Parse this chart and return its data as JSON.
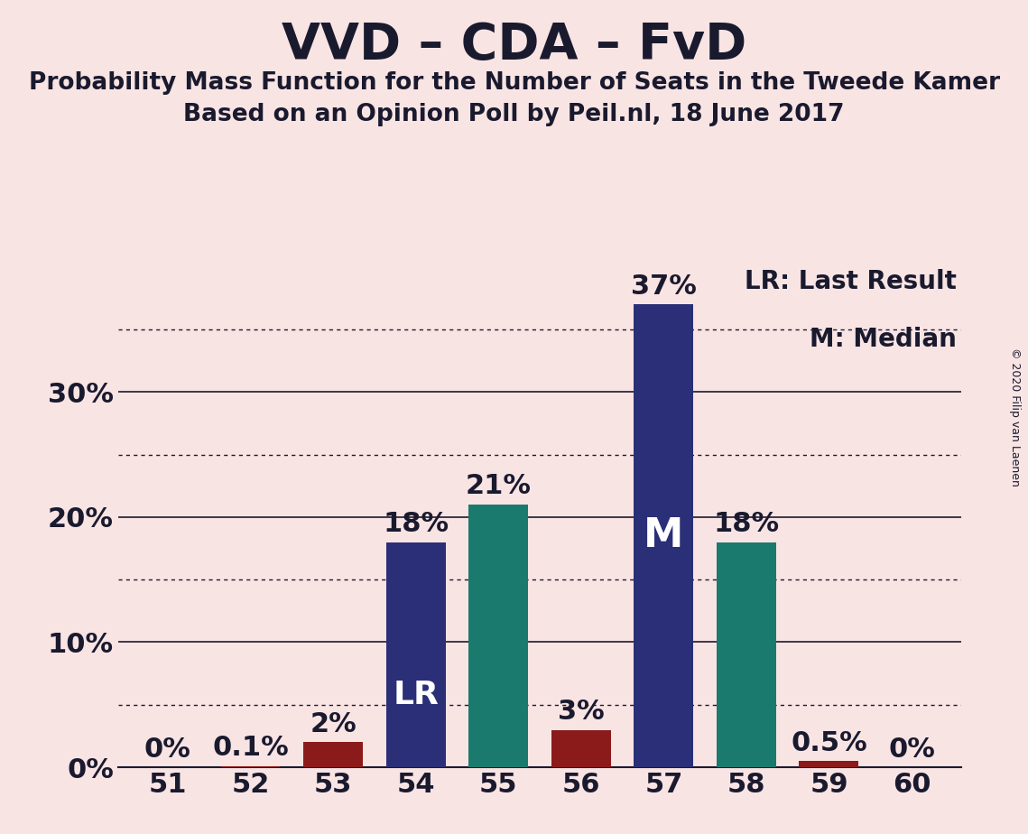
{
  "title": "VVD – CDA – FvD",
  "subtitle1": "Probability Mass Function for the Number of Seats in the Tweede Kamer",
  "subtitle2": "Based on an Opinion Poll by Peil.nl, 18 June 2017",
  "copyright": "© 2020 Filip van Laenen",
  "seats": [
    51,
    52,
    53,
    54,
    55,
    56,
    57,
    58,
    59,
    60
  ],
  "values": [
    0.0,
    0.1,
    2.0,
    18.0,
    21.0,
    3.0,
    37.0,
    18.0,
    0.5,
    0.0
  ],
  "bar_colors": [
    "#8B1A1A",
    "#8B1A1A",
    "#8B1A1A",
    "#2B2F77",
    "#1A7A6E",
    "#8B1A1A",
    "#2B2F77",
    "#1A7A6E",
    "#8B1A1A",
    "#8B1A1A"
  ],
  "background_color": "#F9E4E4",
  "axis_color": "#1A1A2E",
  "label_LR": "LR",
  "label_M": "M",
  "LR_seat": 54,
  "M_seat": 57,
  "legend_LR": "LR: Last Result",
  "legend_M": "M: Median",
  "solid_yticks": [
    0,
    10,
    20,
    30
  ],
  "dotted_yticks": [
    5,
    15,
    25,
    35
  ],
  "ylim": [
    0,
    40
  ],
  "title_fontsize": 40,
  "subtitle_fontsize": 19,
  "bar_label_fontsize": 22,
  "tick_fontsize": 22,
  "legend_fontsize": 20,
  "inner_label_fontsize": 26,
  "grid_color": "#333333",
  "bar_width": 0.72
}
